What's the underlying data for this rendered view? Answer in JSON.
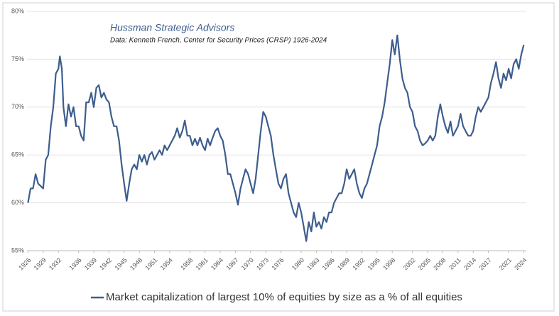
{
  "chart_data": {
    "type": "line",
    "title": "Hussman Strategic Advisors",
    "subtitle": "Data: Kenneth French, Center for Security Prices (CRSP) 1926-2024",
    "x": [
      1926,
      1926.5,
      1927,
      1927.5,
      1928,
      1929,
      1929.5,
      1930,
      1930.5,
      1931,
      1931.5,
      1932,
      1932.3,
      1932.7,
      1933,
      1933.5,
      1934,
      1934.5,
      1935,
      1935.5,
      1936,
      1936.5,
      1937,
      1937.5,
      1938,
      1938.5,
      1939,
      1939.5,
      1940,
      1940.5,
      1941,
      1941.5,
      1942,
      1942.5,
      1943,
      1943.5,
      1944,
      1944.5,
      1945,
      1945.5,
      1946,
      1946.5,
      1947,
      1947.5,
      1948,
      1948.5,
      1949,
      1949.5,
      1950,
      1950.5,
      1951,
      1951.5,
      1952,
      1952.5,
      1953,
      1953.5,
      1954,
      1954.5,
      1955,
      1955.5,
      1956,
      1956.5,
      1957,
      1957.5,
      1958,
      1958.5,
      1959,
      1959.5,
      1960,
      1960.5,
      1961,
      1961.5,
      1962,
      1962.5,
      1963,
      1963.5,
      1964,
      1964.5,
      1965,
      1965.5,
      1966,
      1966.5,
      1967,
      1967.5,
      1968,
      1968.5,
      1969,
      1969.5,
      1970,
      1970.5,
      1971,
      1971.5,
      1972,
      1972.5,
      1973,
      1973.5,
      1974,
      1974.5,
      1975,
      1975.5,
      1976,
      1976.5,
      1977,
      1977.5,
      1978,
      1978.5,
      1979,
      1979.5,
      1980,
      1980.5,
      1981,
      1981.5,
      1982,
      1982.5,
      1983,
      1983.5,
      1984,
      1984.5,
      1985,
      1985.5,
      1986,
      1986.5,
      1987,
      1987.5,
      1988,
      1988.5,
      1989,
      1989.5,
      1990,
      1990.5,
      1991,
      1991.5,
      1992,
      1992.5,
      1993,
      1993.5,
      1994,
      1994.5,
      1995,
      1995.5,
      1996,
      1996.5,
      1997,
      1997.5,
      1998,
      1998.5,
      1999,
      1999.5,
      2000,
      2000.5,
      2001,
      2001.5,
      2002,
      2002.5,
      2003,
      2003.5,
      2004,
      2004.5,
      2005,
      2005.5,
      2006,
      2006.5,
      2007,
      2007.5,
      2008,
      2008.5,
      2009,
      2009.5,
      2010,
      2010.5,
      2011,
      2011.5,
      2012,
      2012.5,
      2013,
      2013.5,
      2014,
      2014.5,
      2015,
      2015.5,
      2016,
      2016.5,
      2017,
      2017.5,
      2018,
      2018.5,
      2019,
      2019.5,
      2020,
      2020.5,
      2021,
      2021.5,
      2022,
      2022.5,
      2023,
      2023.5,
      2024
    ],
    "series": [
      {
        "name": "Market capitalization of largest 10% of equities by size as a % of all equities",
        "color": "#3d5d8e",
        "values": [
          60,
          61.5,
          61.5,
          63,
          62,
          61.5,
          64.5,
          65,
          68,
          70,
          73.5,
          74,
          75.3,
          74,
          70,
          68,
          70.3,
          69,
          70,
          68,
          68,
          67,
          66.5,
          70.5,
          70.5,
          71.5,
          70,
          72,
          72.3,
          71,
          71.5,
          70.8,
          70.5,
          69,
          68,
          68,
          66.5,
          64,
          62,
          60.2,
          62,
          63.5,
          64,
          63.5,
          65,
          64.3,
          65,
          64,
          65,
          65.3,
          64.5,
          65,
          65.5,
          65,
          66,
          65.5,
          66,
          66.5,
          67,
          67.8,
          66.8,
          67.5,
          68.6,
          67,
          67,
          66,
          66.7,
          66,
          66.8,
          66,
          65.5,
          66.7,
          66,
          66.8,
          67.5,
          67.8,
          67,
          66.5,
          65,
          63,
          63,
          62,
          61,
          59.8,
          61.5,
          62.5,
          63.5,
          63,
          62,
          61,
          62.5,
          65,
          67.5,
          69.5,
          69,
          68,
          67,
          65,
          63.5,
          62,
          61.5,
          62.5,
          63,
          61,
          60,
          59,
          58.5,
          60,
          59,
          57.5,
          56,
          58,
          57,
          59,
          57.5,
          58,
          57.3,
          58.5,
          58,
          59,
          59,
          60,
          60.5,
          61,
          61,
          62,
          63.5,
          62.5,
          63,
          63.5,
          62,
          61,
          60.5,
          61.5,
          62,
          63,
          64,
          65,
          66,
          68,
          69,
          70.5,
          72.5,
          74.5,
          77,
          75.5,
          77.5,
          75,
          73,
          72,
          71.5,
          70,
          69.5,
          68,
          67.5,
          66.5,
          66,
          66.2,
          66.5,
          67,
          66.5,
          67,
          69,
          70.3,
          69,
          68,
          67.3,
          68.5,
          67,
          67.5,
          68,
          69.3,
          68,
          67.5,
          67,
          67,
          67.5,
          69,
          70,
          69.5,
          70,
          70.5,
          71,
          72.5,
          73.5,
          74.7,
          73,
          72,
          73.5,
          72.8,
          74,
          73,
          74.5,
          75,
          74,
          75.5,
          76.5
        ]
      }
    ],
    "xlim": [
      1925.8,
      2024.5
    ],
    "xticks": [
      1926,
      1929,
      1932,
      1936,
      1939,
      1942,
      1945,
      1948,
      1951,
      1954,
      1958,
      1961,
      1964,
      1967,
      1970,
      1973,
      1976,
      1980,
      1983,
      1986,
      1989,
      1992,
      1995,
      1998,
      2002,
      2005,
      2008,
      2011,
      2014,
      2017,
      2021,
      2024
    ],
    "ylim": [
      55,
      80
    ],
    "yticks": [
      {
        "value": 55,
        "label": "55%"
      },
      {
        "value": 60,
        "label": "60%"
      },
      {
        "value": 65,
        "label": "65%"
      },
      {
        "value": 70,
        "label": "70%"
      },
      {
        "value": 75,
        "label": "75%"
      },
      {
        "value": 80,
        "label": "80%"
      }
    ],
    "grid": true
  }
}
